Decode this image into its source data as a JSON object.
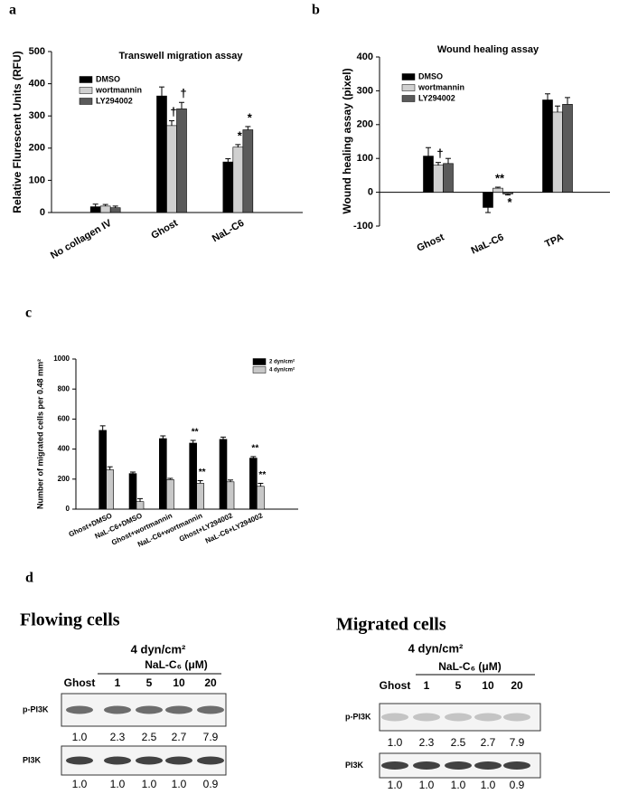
{
  "chart_data": [
    {
      "type": "bar",
      "panel": "a",
      "title": "Transwell migration assay",
      "y_label": "Relative Flurescent Units (RFU)",
      "categories": [
        "No collagen IV",
        "Ghost",
        "NaL-C6"
      ],
      "series": [
        {
          "name": "DMSO",
          "color": "#000000",
          "values": [
            18,
            362,
            157
          ],
          "errors": [
            8,
            28,
            10
          ],
          "notes": [
            null,
            null,
            null
          ]
        },
        {
          "name": "wortmannin",
          "color": "#d0d0d0",
          "values": [
            20,
            270,
            203
          ],
          "errors": [
            5,
            15,
            8
          ],
          "notes": [
            null,
            "†",
            "*"
          ]
        },
        {
          "name": "LY294002",
          "color": "#5a5a5a",
          "values": [
            15,
            322,
            257
          ],
          "errors": [
            5,
            20,
            10
          ],
          "notes": [
            null,
            "†",
            "*"
          ]
        }
      ],
      "ylim": [
        0,
        500
      ],
      "yticks": [
        0,
        100,
        200,
        300,
        400,
        500
      ]
    },
    {
      "type": "bar",
      "panel": "b",
      "title": "Wound healing assay",
      "y_label": "Wound healing assay (pixel)",
      "categories": [
        "Ghost",
        "NaL-C6",
        "TPA"
      ],
      "series": [
        {
          "name": "DMSO",
          "color": "#000000",
          "values": [
            107,
            -45,
            273
          ],
          "errors": [
            25,
            15,
            18
          ],
          "notes": [
            null,
            null,
            null
          ]
        },
        {
          "name": "wortmannin",
          "color": "#d0d0d0",
          "values": [
            80,
            12,
            237
          ],
          "errors": [
            8,
            3,
            18
          ],
          "notes": [
            "†",
            "**",
            null
          ]
        },
        {
          "name": "LY294002",
          "color": "#5a5a5a",
          "values": [
            85,
            -5,
            260
          ],
          "errors": [
            15,
            3,
            20
          ],
          "notes": [
            null,
            "*",
            null
          ]
        }
      ],
      "ylim": [
        -100,
        400
      ],
      "yticks": [
        -100,
        0,
        100,
        200,
        300,
        400
      ]
    },
    {
      "type": "bar",
      "panel": "c",
      "y_label": "Number of migrated cells per 0.48 mm²",
      "categories": [
        "Ghost+DMSO",
        "NaL-C6+DMSO",
        "Ghost+wortmannin",
        "NaL-C6+wortmannin",
        "Ghost+LY294002",
        "NaL-C6+LY294002"
      ],
      "series": [
        {
          "name": "2 dyn/cm²",
          "color": "#000000",
          "values": [
            525,
            237,
            470,
            440,
            465,
            340
          ],
          "errors": [
            30,
            10,
            18,
            18,
            15,
            10
          ],
          "notes": [
            null,
            null,
            null,
            "**",
            null,
            "**"
          ]
        },
        {
          "name": "4 dyn/cm²",
          "color": "#c8c8c8",
          "values": [
            262,
            50,
            197,
            172,
            182,
            152
          ],
          "errors": [
            20,
            20,
            8,
            18,
            12,
            20
          ],
          "notes": [
            null,
            null,
            null,
            "**",
            null,
            "**"
          ]
        }
      ],
      "ylim": [
        0,
        1000
      ],
      "yticks": [
        0,
        200,
        400,
        600,
        800,
        1000
      ]
    }
  ],
  "blot_panel": {
    "panel": "d",
    "blots": [
      {
        "title": "Flowing cells",
        "condition": "4 dyn/cm²",
        "treatment": "NaL-C₆ (μM)",
        "lanes": [
          "Ghost",
          "1",
          "5",
          "10",
          "20"
        ],
        "rows": [
          {
            "name": "p-PI3K",
            "values": [
              "1.0",
              "2.3",
              "2.5",
              "2.7",
              "7.9"
            ]
          },
          {
            "name": "PI3K",
            "values": [
              "1.0",
              "1.0",
              "1.0",
              "1.0",
              "0.9"
            ]
          }
        ]
      },
      {
        "title": "Migrated cells",
        "condition": "4 dyn/cm²",
        "treatment": "NaL-C₆ (μM)",
        "lanes": [
          "Ghost",
          "1",
          "5",
          "10",
          "20"
        ],
        "rows": [
          {
            "name": "p-PI3K",
            "values": [
              "1.0",
              "2.3",
              "2.5",
              "2.7",
              "7.9"
            ]
          },
          {
            "name": "PI3K",
            "values": [
              "1.0",
              "1.0",
              "1.0",
              "1.0",
              "0.9"
            ]
          }
        ]
      }
    ]
  }
}
